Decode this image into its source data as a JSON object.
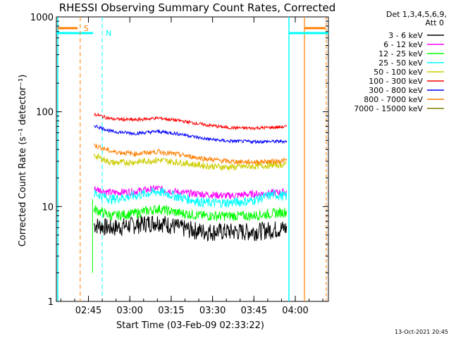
{
  "chart_data": {
    "type": "line",
    "title": "RHESSI Observing Summary Count Rates, Corrected",
    "xlabel": "Start Time (03-Feb-09 02:33:22)",
    "ylabel": "Corrected Count Rate (s⁻¹ detector⁻¹)",
    "y_scale": "log",
    "ylim": [
      1,
      1000
    ],
    "xlim": [
      "02:33:22",
      "04:12:00"
    ],
    "x_tick_labels": [
      "02:45",
      "03:00",
      "03:15",
      "03:30",
      "03:45",
      "04:00"
    ],
    "y_tick_labels": [
      "1",
      "10",
      "100",
      "1000"
    ],
    "legend_header": [
      "Det 1,3,4,5,6,9,",
      "Att 0"
    ],
    "footer_date": "13-Oct-2021 20:45",
    "markers": [
      {
        "label": "S",
        "time": "02:42:00",
        "color": "#ff7f00"
      },
      {
        "label": "N",
        "time": "02:50:00",
        "color": "#00ffff"
      }
    ],
    "series": [
      {
        "name": "3 - 6 keV",
        "color": "#000000",
        "values": [
          [
            2.0,
            6.5
          ],
          [
            10.0,
            6.0
          ],
          [
            20.0,
            6.5
          ],
          [
            30.0,
            7.0
          ],
          [
            40.0,
            6.0
          ],
          [
            50.0,
            5.5
          ],
          [
            60.0,
            5.5
          ],
          [
            70.0,
            5.5
          ],
          [
            80.0,
            5.8
          ],
          [
            88.0,
            6.0
          ]
        ]
      },
      {
        "name": "6 - 12 keV",
        "color": "#ff00ff",
        "values": [
          [
            2.0,
            15.5
          ],
          [
            10.0,
            14.0
          ],
          [
            20.0,
            14.5
          ],
          [
            30.0,
            15.5
          ],
          [
            40.0,
            14.0
          ],
          [
            50.0,
            13.5
          ],
          [
            60.0,
            13.0
          ],
          [
            70.0,
            13.5
          ],
          [
            80.0,
            14.0
          ],
          [
            88.0,
            14.5
          ]
        ]
      },
      {
        "name": "12 - 25 keV",
        "color": "#00ff00",
        "values": [
          [
            2.0,
            9.5
          ],
          [
            10.0,
            8.0
          ],
          [
            20.0,
            8.5
          ],
          [
            30.0,
            9.5
          ],
          [
            40.0,
            8.5
          ],
          [
            50.0,
            8.0
          ],
          [
            60.0,
            8.0
          ],
          [
            70.0,
            8.0
          ],
          [
            80.0,
            8.5
          ],
          [
            88.0,
            9.0
          ]
        ]
      },
      {
        "name": "25 - 50 keV",
        "color": "#00ffff",
        "values": [
          [
            2.0,
            14.0
          ],
          [
            10.0,
            12.0
          ],
          [
            20.0,
            13.0
          ],
          [
            30.0,
            14.5
          ],
          [
            40.0,
            12.5
          ],
          [
            50.0,
            11.0
          ],
          [
            60.0,
            11.0
          ],
          [
            70.0,
            11.5
          ],
          [
            80.0,
            13.5
          ],
          [
            88.0,
            12.5
          ]
        ]
      },
      {
        "name": "50 - 100 keV",
        "color": "#cccc00",
        "values": [
          [
            2.0,
            35.0
          ],
          [
            10.0,
            29.0
          ],
          [
            20.0,
            29.5
          ],
          [
            30.0,
            31.0
          ],
          [
            40.0,
            29.0
          ],
          [
            50.0,
            27.0
          ],
          [
            60.0,
            26.0
          ],
          [
            70.0,
            26.5
          ],
          [
            80.0,
            27.5
          ],
          [
            88.0,
            28.0
          ]
        ]
      },
      {
        "name": "100 - 300 keV",
        "color": "#ff0000",
        "values": [
          [
            2.0,
            95.0
          ],
          [
            10.0,
            84.0
          ],
          [
            20.0,
            82.0
          ],
          [
            30.0,
            86.0
          ],
          [
            40.0,
            80.0
          ],
          [
            50.0,
            73.0
          ],
          [
            60.0,
            68.0
          ],
          [
            70.0,
            67.0
          ],
          [
            80.0,
            68.5
          ],
          [
            88.0,
            70.0
          ]
        ]
      },
      {
        "name": "300 - 800 keV",
        "color": "#0000ff",
        "values": [
          [
            2.0,
            72.0
          ],
          [
            10.0,
            62.0
          ],
          [
            20.0,
            59.0
          ],
          [
            30.0,
            62.0
          ],
          [
            40.0,
            58.0
          ],
          [
            50.0,
            52.0
          ],
          [
            60.0,
            49.0
          ],
          [
            70.0,
            48.5
          ],
          [
            80.0,
            48.5
          ],
          [
            88.0,
            49.0
          ]
        ]
      },
      {
        "name": "800 - 7000 keV",
        "color": "#ff7f00",
        "values": [
          [
            2.0,
            45.0
          ],
          [
            10.0,
            38.0
          ],
          [
            20.0,
            36.0
          ],
          [
            30.0,
            38.0
          ],
          [
            40.0,
            35.0
          ],
          [
            50.0,
            32.0
          ],
          [
            60.0,
            30.0
          ],
          [
            70.0,
            29.5
          ],
          [
            80.0,
            30.0
          ],
          [
            88.0,
            31.0
          ]
        ]
      },
      {
        "name": "7000 - 15000 keV",
        "color": "#7f7f00",
        "values": []
      }
    ]
  }
}
